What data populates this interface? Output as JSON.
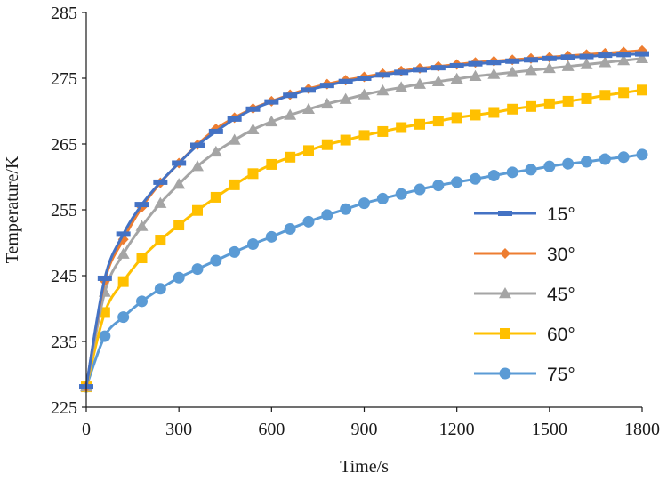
{
  "chart_data": {
    "type": "line",
    "title": "",
    "xlabel": "Time/s",
    "ylabel": "Temperature/K",
    "xlim": [
      0,
      1800
    ],
    "ylim": [
      225,
      285
    ],
    "xticks": [
      0,
      300,
      600,
      900,
      1200,
      1500,
      1800
    ],
    "yticks": [
      225,
      235,
      245,
      255,
      265,
      275,
      285
    ],
    "x": [
      0,
      60,
      120,
      180,
      240,
      300,
      360,
      420,
      480,
      540,
      600,
      660,
      720,
      780,
      840,
      900,
      960,
      1020,
      1080,
      1140,
      1200,
      1260,
      1320,
      1380,
      1440,
      1500,
      1560,
      1620,
      1680,
      1740,
      1800
    ],
    "legend_position": "bottom-right",
    "series": [
      {
        "name": "15°",
        "color": "#4472C4",
        "marker": "dash",
        "values": [
          228.1,
          244.6,
          251.3,
          255.8,
          259.2,
          262.1,
          264.8,
          266.9,
          268.8,
          270.3,
          271.4,
          272.4,
          273.2,
          273.9,
          274.5,
          275.0,
          275.5,
          275.9,
          276.3,
          276.6,
          276.9,
          277.2,
          277.4,
          277.6,
          277.8,
          278.0,
          278.2,
          278.3,
          278.5,
          278.6,
          278.7
        ]
      },
      {
        "name": "30°",
        "color": "#ED7D31",
        "marker": "diamond",
        "values": [
          228.1,
          244.2,
          250.5,
          255.4,
          259.1,
          262.1,
          264.9,
          267.3,
          269.0,
          270.4,
          271.5,
          272.5,
          273.4,
          274.1,
          274.7,
          275.2,
          275.7,
          276.1,
          276.5,
          276.8,
          277.1,
          277.4,
          277.6,
          277.8,
          278.0,
          278.2,
          278.4,
          278.6,
          278.8,
          279.0,
          279.2
        ]
      },
      {
        "name": "45°",
        "color": "#A5A5A5",
        "marker": "triangle",
        "values": [
          228.1,
          242.5,
          248.3,
          252.5,
          256.0,
          258.9,
          261.6,
          263.8,
          265.6,
          267.2,
          268.4,
          269.4,
          270.3,
          271.1,
          271.8,
          272.5,
          273.1,
          273.6,
          274.1,
          274.5,
          274.9,
          275.3,
          275.6,
          275.9,
          276.2,
          276.5,
          276.8,
          277.1,
          277.4,
          277.7,
          278.0
        ]
      },
      {
        "name": "60°",
        "color": "#FFC000",
        "marker": "square",
        "values": [
          228.1,
          239.4,
          244.1,
          247.7,
          250.4,
          252.7,
          254.9,
          256.9,
          258.8,
          260.5,
          261.9,
          263.0,
          264.0,
          264.9,
          265.6,
          266.3,
          266.9,
          267.5,
          268.0,
          268.5,
          269.0,
          269.4,
          269.8,
          270.3,
          270.7,
          271.1,
          271.5,
          271.9,
          272.4,
          272.8,
          273.2
        ]
      },
      {
        "name": "75°",
        "color": "#5B9BD5",
        "marker": "circle",
        "values": [
          228.1,
          235.8,
          238.7,
          241.1,
          243.0,
          244.7,
          246.0,
          247.3,
          248.6,
          249.8,
          250.9,
          252.1,
          253.2,
          254.2,
          255.1,
          256.0,
          256.7,
          257.4,
          258.1,
          258.7,
          259.2,
          259.7,
          260.2,
          260.7,
          261.1,
          261.6,
          262.0,
          262.3,
          262.7,
          263.0,
          263.4
        ]
      }
    ]
  }
}
